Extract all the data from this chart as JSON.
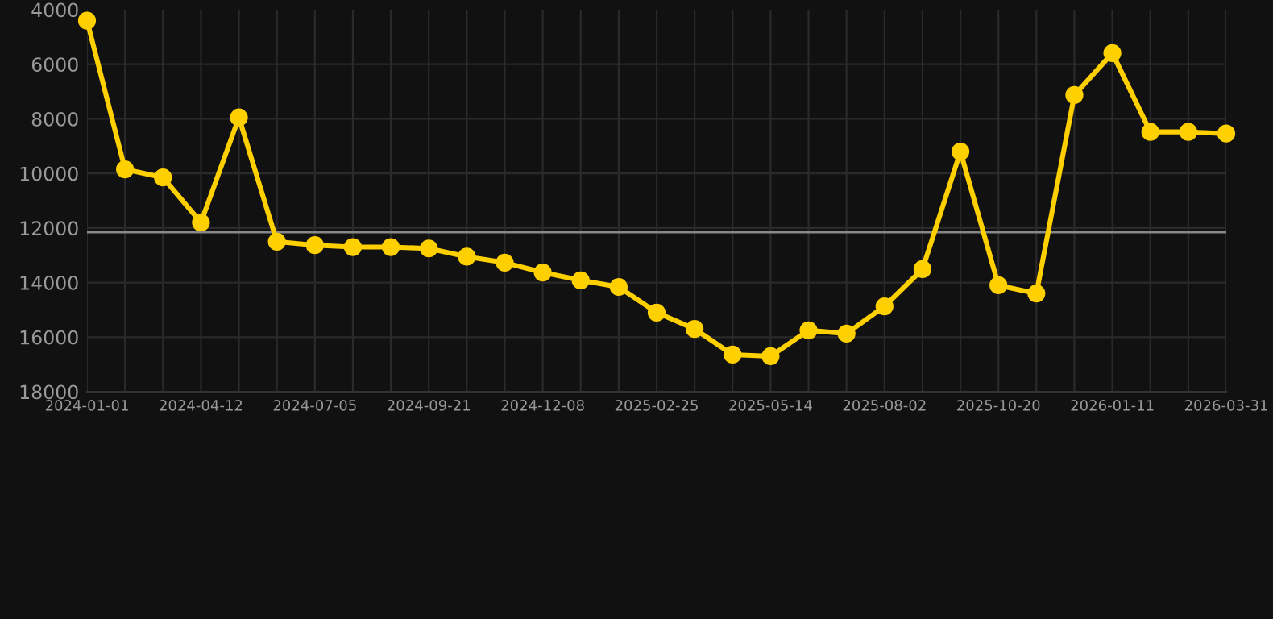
{
  "chart_data": {
    "type": "line",
    "categories": [
      "2024-01-01",
      null,
      null,
      "2024-04-12",
      null,
      null,
      "2024-07-05",
      null,
      null,
      "2024-09-21",
      null,
      null,
      "2024-12-08",
      null,
      null,
      "2025-02-25",
      null,
      null,
      "2025-05-14",
      null,
      null,
      "2025-08-02",
      null,
      null,
      "2025-10-20",
      null,
      null,
      "2026-01-11",
      null,
      null,
      "2026-03-31"
    ],
    "series": [
      {
        "color": "#ffd000",
        "values": [
          4400,
          9850,
          10150,
          11800,
          7950,
          12500,
          12630,
          12700,
          12700,
          12750,
          13050,
          13270,
          13630,
          13920,
          14160,
          15100,
          15700,
          16640,
          16700,
          15750,
          15870,
          14870,
          13510,
          9200,
          14100,
          14400,
          7130,
          5590,
          8480,
          8480,
          8540
        ]
      }
    ],
    "ylim": [
      18000,
      4000
    ],
    "yticks": [
      4000,
      6000,
      8000,
      10000,
      12000,
      14000,
      16000,
      18000
    ],
    "ref_lines": [
      {
        "axis": "y",
        "value": 12150,
        "color": "#888888"
      }
    ],
    "grid": true,
    "marker": "circle",
    "line_style": "solid"
  }
}
